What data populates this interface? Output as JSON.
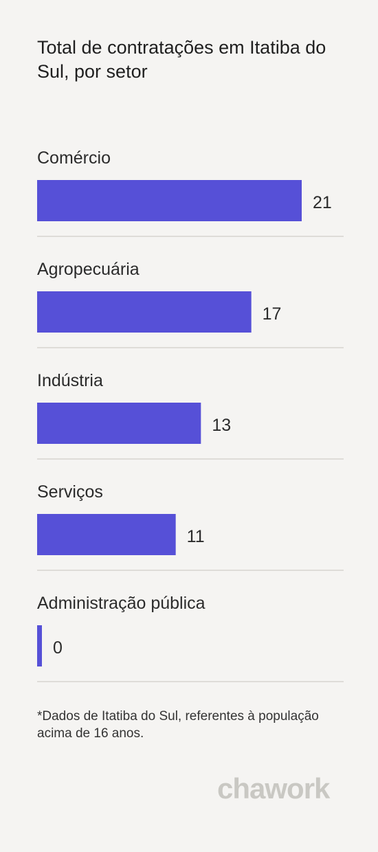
{
  "title": "Total de contratações em Itatiba do Sul, por setor",
  "footnote": "*Dados de Itatiba do Sul, referentes à população acima de 16 anos.",
  "brand": "chawork",
  "colors": {
    "bar": "#5650d7",
    "divider": "#dedcd8",
    "text": "#2b2b2b"
  },
  "chart_data": {
    "type": "bar",
    "orientation": "horizontal",
    "categories": [
      "Comércio",
      "Agropecuária",
      "Indústria",
      "Serviços",
      "Administração pública"
    ],
    "values": [
      21,
      17,
      13,
      11,
      0
    ],
    "data_labels": [
      "21",
      "17",
      "13",
      "11",
      "0"
    ],
    "xlim": [
      0,
      24
    ],
    "grid": false,
    "legend": "none"
  }
}
